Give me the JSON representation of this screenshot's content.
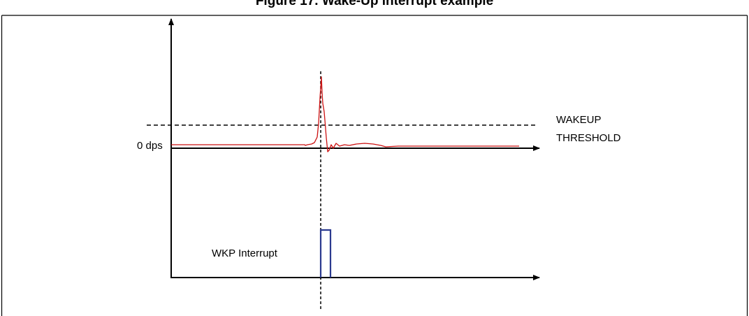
{
  "figure": {
    "title": "Figure 17. Wake-Up interrupt example",
    "labels": {
      "zero_level": "0 dps",
      "threshold_line1": "WAKEUP",
      "threshold_line2": "THRESHOLD",
      "interrupt": "WKP Interrupt"
    },
    "colors": {
      "signal": "#cc1111",
      "interrupt_pulse": "#2b3a8f",
      "axes": "#000000",
      "frame": "#000000"
    }
  }
}
